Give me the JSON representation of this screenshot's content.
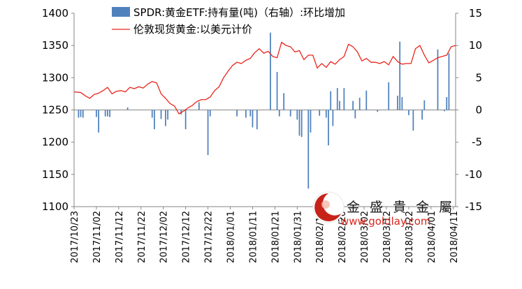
{
  "chart_data": {
    "type": "bar+line",
    "title": "",
    "xlabel": "",
    "ylabel": "",
    "left_axis": {
      "ylim": [
        1100,
        1400
      ],
      "ticks": [
        "1100",
        "1150",
        "1200",
        "1250",
        "1300",
        "1350",
        "1400"
      ]
    },
    "right_axis": {
      "ylim": [
        -15,
        15
      ],
      "ticks": [
        "-15",
        "-10",
        "-5",
        "0",
        "5",
        "10",
        "15"
      ]
    },
    "x_tick_labels": [
      "2017/10/23",
      "2017/11/02",
      "2017/11/12",
      "2017/11/22",
      "2017/12/02",
      "2017/12/12",
      "2017/12/22",
      "2018/01/01",
      "2018/01/11",
      "2018/01/21",
      "2018/01/31",
      "2018/02/10",
      "2018/02/20",
      "2018/03/02",
      "2018/03/12",
      "2018/03/22",
      "2018/04/01",
      "2018/04/11"
    ],
    "x_range_days": [
      0,
      171
    ],
    "grid": false,
    "legend_position": "top",
    "series": [
      {
        "name": "SPDR:黄金ETF:持有量(吨)（右轴）:环比增加",
        "kind": "bar",
        "axis": "right",
        "color": "#4f81bd",
        "x": [
          2,
          3,
          4,
          10,
          11,
          14,
          15,
          16,
          24,
          35,
          36,
          39,
          41,
          42,
          48,
          50,
          56,
          60,
          61,
          73,
          77,
          79,
          80,
          82,
          88,
          91,
          92,
          94,
          97,
          100,
          101,
          102,
          105,
          106,
          110,
          113,
          114,
          115,
          116,
          118,
          119,
          121,
          125,
          126,
          128,
          131,
          136,
          141,
          145,
          146,
          147,
          150,
          152,
          156,
          157,
          163,
          166,
          167,
          168
        ],
        "values": [
          -1.2,
          -1.1,
          -1.2,
          -1.1,
          -3.5,
          -1.0,
          -1.0,
          -1.1,
          0.4,
          -1.2,
          -3.0,
          -1.4,
          -2.5,
          -1.5,
          -0.7,
          -3.0,
          1.2,
          -7.0,
          -1.0,
          -1.0,
          -1.2,
          -1.0,
          -2.7,
          -3.0,
          12.0,
          5.9,
          -1.0,
          2.6,
          -1.0,
          -1.5,
          -4.0,
          -4.2,
          -12.2,
          -3.5,
          -0.9,
          -1.2,
          -5.5,
          2.9,
          -2.5,
          3.4,
          1.4,
          3.4,
          1.4,
          -1.3,
          1.9,
          3.0,
          -0.3,
          4.3,
          2.2,
          10.6,
          2.0,
          -0.8,
          -3.2,
          -1.5,
          1.5,
          9.4,
          -0.2,
          2.0,
          8.8
        ]
      },
      {
        "name": "伦敦现货黄金:以美元计价",
        "kind": "line",
        "axis": "left",
        "color": "#e8251c",
        "x": [
          0,
          3,
          5,
          7,
          9,
          11,
          13,
          15,
          17,
          19,
          21,
          23,
          25,
          27,
          29,
          31,
          33,
          35,
          37,
          39,
          41,
          43,
          45,
          47,
          49,
          51,
          53,
          55,
          57,
          59,
          61,
          63,
          65,
          67,
          69,
          71,
          73,
          75,
          77,
          79,
          81,
          83,
          85,
          87,
          89,
          91,
          93,
          95,
          97,
          99,
          101,
          103,
          105,
          107,
          109,
          111,
          113,
          115,
          117,
          119,
          121,
          123,
          125,
          127,
          129,
          131,
          133,
          135,
          137,
          139,
          141,
          143,
          145,
          147,
          149,
          151,
          153,
          155,
          157,
          159,
          161,
          163,
          165,
          167,
          169,
          171
        ],
        "values": [
          1278,
          1277,
          1272,
          1268,
          1274,
          1276,
          1280,
          1285,
          1275,
          1279,
          1280,
          1278,
          1285,
          1283,
          1286,
          1284,
          1290,
          1294,
          1292,
          1275,
          1268,
          1260,
          1256,
          1244,
          1248,
          1253,
          1257,
          1263,
          1266,
          1266,
          1270,
          1280,
          1286,
          1300,
          1310,
          1319,
          1324,
          1322,
          1327,
          1330,
          1339,
          1345,
          1338,
          1341,
          1333,
          1331,
          1355,
          1350,
          1348,
          1340,
          1342,
          1328,
          1335,
          1335,
          1315,
          1322,
          1316,
          1325,
          1321,
          1328,
          1333,
          1352,
          1348,
          1340,
          1326,
          1330,
          1324,
          1324,
          1322,
          1325,
          1320,
          1333,
          1325,
          1321,
          1322,
          1322,
          1345,
          1350,
          1335,
          1323,
          1327,
          1331,
          1333,
          1335,
          1348,
          1350
        ]
      }
    ]
  },
  "legend": {
    "bar_label": "SPDR:黄金ETF:持有量(吨)（右轴）:环比增加",
    "line_label": "伦敦现货黄金:以美元计价"
  },
  "watermark": {
    "brand_text": "金 盛 貴 金 屬",
    "url_text": "www.goldlay.com"
  }
}
